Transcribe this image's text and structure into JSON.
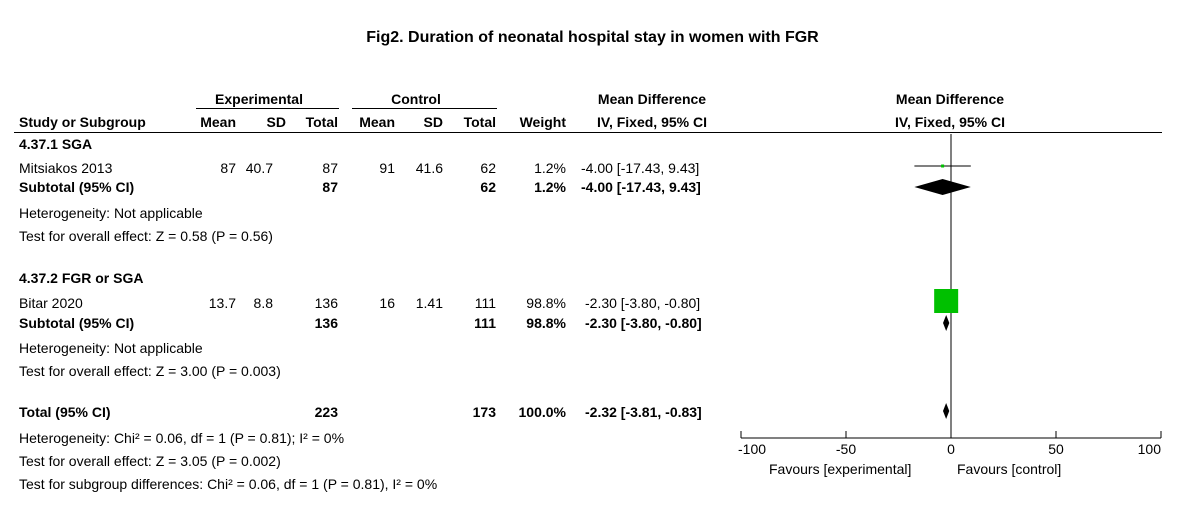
{
  "title": "Fig2. Duration of neonatal hospital stay in women with FGR",
  "headers": {
    "experimental": "Experimental",
    "control": "Control",
    "md_left": "Mean Difference",
    "md_right": "Mean Difference",
    "study": "Study or Subgroup",
    "mean": "Mean",
    "sd": "SD",
    "total": "Total",
    "weight": "Weight",
    "ivfixed_left": "IV, Fixed, 95% CI",
    "ivfixed_right": "IV, Fixed, 95% CI"
  },
  "groups": [
    {
      "name": "4.37.1 SGA",
      "study": {
        "name": "Mitsiakos 2013",
        "exp_mean": "87",
        "exp_sd": "40.7",
        "exp_total": "87",
        "ctl_mean": "91",
        "ctl_sd": "41.6",
        "ctl_total": "62",
        "weight": "1.2%",
        "ci": "-4.00 [-17.43, 9.43]"
      },
      "subtotal": {
        "label": "Subtotal (95% CI)",
        "exp_total": "87",
        "ctl_total": "62",
        "weight": "1.2%",
        "ci": "-4.00 [-17.43, 9.43]"
      },
      "heterogeneity": "Heterogeneity: Not applicable",
      "overall": "Test for overall effect: Z = 0.58 (P = 0.56)"
    },
    {
      "name": "4.37.2 FGR or SGA",
      "study": {
        "name": "Bitar 2020",
        "exp_mean": "13.7",
        "exp_sd": "8.8",
        "exp_total": "136",
        "ctl_mean": "16",
        "ctl_sd": "1.41",
        "ctl_total": "111",
        "weight": "98.8%",
        "ci": "-2.30 [-3.80, -0.80]"
      },
      "subtotal": {
        "label": "Subtotal (95% CI)",
        "exp_total": "136",
        "ctl_total": "111",
        "weight": "98.8%",
        "ci": "-2.30 [-3.80, -0.80]"
      },
      "heterogeneity": "Heterogeneity: Not applicable",
      "overall": "Test for overall effect: Z = 3.00 (P = 0.003)"
    }
  ],
  "total": {
    "label": "Total (95% CI)",
    "exp_total": "223",
    "ctl_total": "173",
    "weight": "100.0%",
    "ci": "-2.32 [-3.81, -0.83]"
  },
  "footer": {
    "heterogeneity": "Heterogeneity: Chi² = 0.06, df = 1 (P = 0.81); I² = 0%",
    "overall": "Test for overall effect: Z = 3.05 (P = 0.002)",
    "subgroup": "Test for subgroup differences: Chi² = 0.06, df = 1 (P = 0.81), I² = 0%"
  },
  "axis_labels": {
    "favours_left": "Favours [experimental]",
    "favours_right": "Favours [control]"
  },
  "colors": {
    "square": "#00c000",
    "diamond": "#000000"
  },
  "chart_data": {
    "type": "forest",
    "xlim": [
      -100,
      100
    ],
    "ticks": [
      "-100",
      "-50",
      "0",
      "50",
      "100"
    ],
    "tick_values": [
      -100,
      -50,
      0,
      50,
      100
    ],
    "studies": [
      {
        "name": "Mitsiakos 2013",
        "md": -4.0,
        "lo": -17.43,
        "hi": 9.43,
        "weight": 1.2
      },
      {
        "name": "Bitar 2020",
        "md": -2.3,
        "lo": -3.8,
        "hi": -0.8,
        "weight": 98.8
      }
    ],
    "diamonds": [
      {
        "name": "Subtotal SGA",
        "md": -4.0,
        "lo": -17.43,
        "hi": 9.43
      },
      {
        "name": "Subtotal FGR or SGA",
        "md": -2.3,
        "lo": -3.8,
        "hi": -0.8
      },
      {
        "name": "Total",
        "md": -2.32,
        "lo": -3.81,
        "hi": -0.83
      }
    ]
  }
}
